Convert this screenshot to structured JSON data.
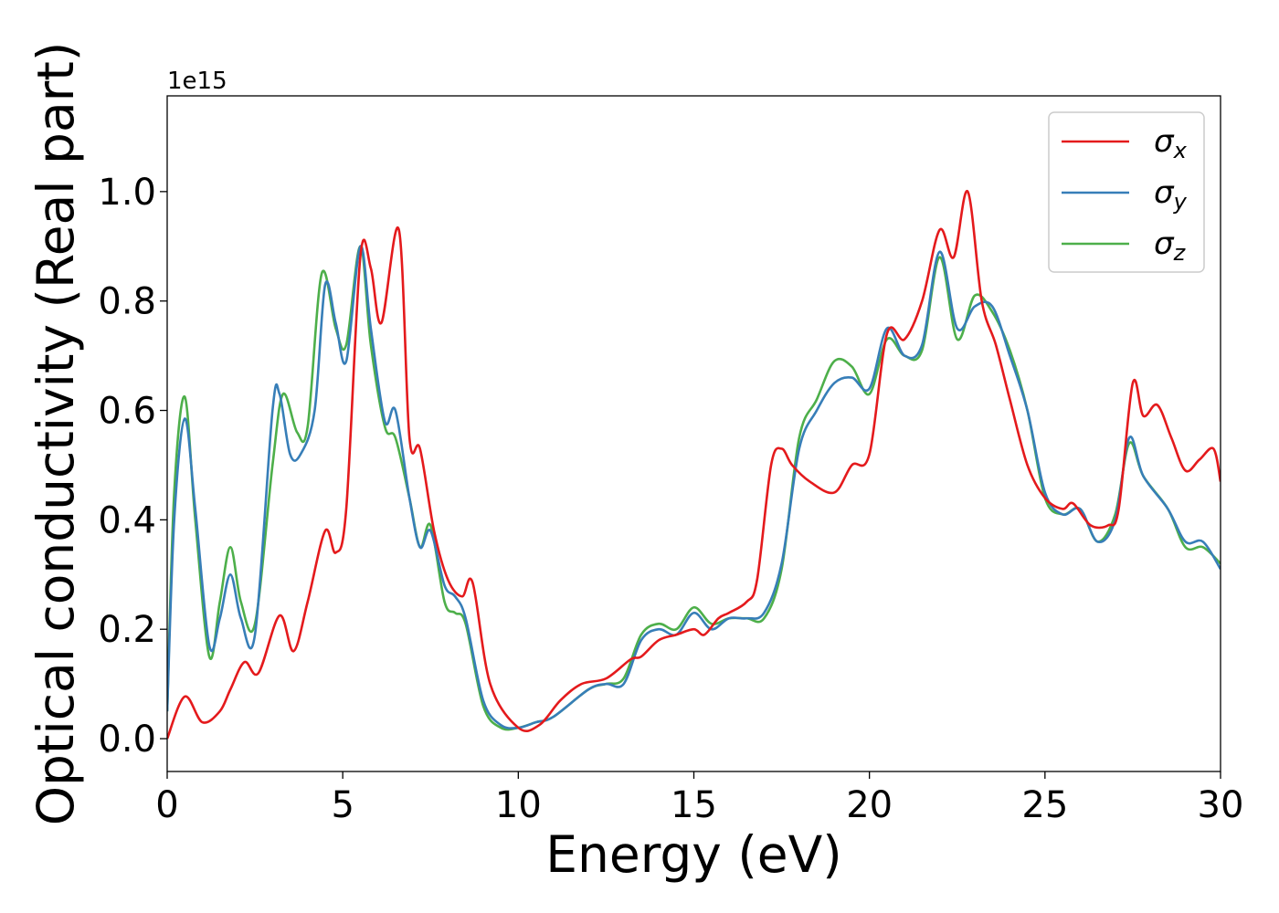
{
  "chart_data": {
    "type": "line",
    "title": "",
    "xlabel": "Energy (eV)",
    "ylabel": "Optical conductivity (Real part)",
    "y_offset_text": "1e15",
    "xlim": [
      0,
      30
    ],
    "ylim": [
      -0.06,
      1.175
    ],
    "xticks": [
      0,
      5,
      10,
      15,
      20,
      25,
      30
    ],
    "xtick_labels": [
      "0",
      "5",
      "10",
      "15",
      "20",
      "25",
      "30"
    ],
    "yticks": [
      0.0,
      0.2,
      0.4,
      0.6,
      0.8,
      1.0
    ],
    "ytick_labels": [
      "0.0",
      "0.2",
      "0.4",
      "0.6",
      "0.8",
      "1.0"
    ],
    "grid": false,
    "legend_position": "upper right",
    "series": [
      {
        "name": "σx",
        "symbol": "σ",
        "subscript": "x",
        "color": "#e41a1c",
        "x": [
          0,
          0.5,
          1.0,
          1.5,
          1.8,
          2.2,
          2.6,
          3.2,
          3.6,
          4.0,
          4.5,
          4.8,
          5.1,
          5.5,
          5.8,
          6.1,
          6.6,
          6.9,
          7.2,
          7.6,
          8.0,
          8.4,
          8.7,
          9.2,
          10.0,
          10.6,
          11.2,
          11.8,
          12.5,
          13.2,
          13.5,
          14.0,
          14.5,
          15.0,
          15.3,
          15.7,
          16.0,
          16.5,
          16.8,
          17.2,
          17.5,
          17.8,
          18.3,
          19.0,
          19.5,
          20.0,
          20.5,
          21.0,
          21.5,
          22.0,
          22.4,
          22.8,
          23.2,
          23.6,
          24.0,
          24.5,
          25.0,
          25.5,
          25.8,
          26.3,
          26.8,
          27.1,
          27.5,
          27.8,
          28.2,
          28.6,
          29.0,
          29.4,
          29.8,
          30.0
        ],
        "y": [
          0.0,
          0.077,
          0.03,
          0.05,
          0.09,
          0.14,
          0.12,
          0.225,
          0.16,
          0.25,
          0.38,
          0.34,
          0.42,
          0.88,
          0.86,
          0.76,
          0.93,
          0.55,
          0.53,
          0.38,
          0.29,
          0.26,
          0.285,
          0.1,
          0.02,
          0.025,
          0.07,
          0.1,
          0.11,
          0.145,
          0.15,
          0.18,
          0.19,
          0.2,
          0.19,
          0.22,
          0.23,
          0.25,
          0.29,
          0.5,
          0.53,
          0.5,
          0.47,
          0.45,
          0.5,
          0.52,
          0.74,
          0.73,
          0.8,
          0.93,
          0.88,
          1.0,
          0.8,
          0.72,
          0.62,
          0.5,
          0.44,
          0.42,
          0.43,
          0.39,
          0.39,
          0.42,
          0.65,
          0.59,
          0.61,
          0.55,
          0.49,
          0.51,
          0.53,
          0.47
        ]
      },
      {
        "name": "σy",
        "symbol": "σ",
        "subscript": "y",
        "color": "#377eb8",
        "x": [
          0,
          0.2,
          0.5,
          0.8,
          1.2,
          1.5,
          1.8,
          2.1,
          2.5,
          3.0,
          3.2,
          3.5,
          3.8,
          4.2,
          4.5,
          4.8,
          5.1,
          5.5,
          5.8,
          6.2,
          6.5,
          6.9,
          7.2,
          7.5,
          7.9,
          8.2,
          8.5,
          9.0,
          9.5,
          10.0,
          10.5,
          11.0,
          12.0,
          12.5,
          13.0,
          13.5,
          14.0,
          14.5,
          15.0,
          15.5,
          16.0,
          16.5,
          17.0,
          17.5,
          18.0,
          18.5,
          19.0,
          19.5,
          20.0,
          20.5,
          21.0,
          21.5,
          22.0,
          22.5,
          23.0,
          23.5,
          24.0,
          24.5,
          25.0,
          25.5,
          26.0,
          26.5,
          27.0,
          27.4,
          27.8,
          28.5,
          29.0,
          29.5,
          30.0
        ],
        "y": [
          0.05,
          0.4,
          0.585,
          0.42,
          0.17,
          0.22,
          0.3,
          0.22,
          0.19,
          0.6,
          0.63,
          0.52,
          0.52,
          0.6,
          0.83,
          0.76,
          0.69,
          0.9,
          0.75,
          0.58,
          0.6,
          0.44,
          0.35,
          0.38,
          0.28,
          0.26,
          0.22,
          0.07,
          0.025,
          0.02,
          0.03,
          0.04,
          0.09,
          0.1,
          0.1,
          0.18,
          0.2,
          0.19,
          0.23,
          0.2,
          0.22,
          0.22,
          0.23,
          0.32,
          0.53,
          0.6,
          0.65,
          0.66,
          0.64,
          0.75,
          0.7,
          0.72,
          0.89,
          0.75,
          0.79,
          0.79,
          0.7,
          0.6,
          0.45,
          0.41,
          0.42,
          0.36,
          0.4,
          0.55,
          0.48,
          0.42,
          0.36,
          0.36,
          0.31
        ]
      },
      {
        "name": "σz",
        "symbol": "σ",
        "subscript": "z",
        "color": "#4daf4a",
        "x": [
          0,
          0.2,
          0.5,
          0.8,
          1.2,
          1.5,
          1.8,
          2.1,
          2.5,
          3.0,
          3.3,
          3.7,
          4.0,
          4.4,
          4.8,
          5.1,
          5.5,
          5.8,
          6.2,
          6.5,
          6.9,
          7.2,
          7.5,
          7.9,
          8.2,
          8.5,
          9.0,
          9.5,
          10.0,
          10.5,
          11.0,
          12.0,
          12.5,
          13.0,
          13.5,
          14.0,
          14.5,
          15.0,
          15.5,
          16.0,
          16.5,
          17.0,
          17.5,
          18.0,
          18.5,
          19.0,
          19.5,
          20.0,
          20.5,
          21.0,
          21.5,
          22.0,
          22.5,
          23.0,
          23.5,
          24.0,
          24.5,
          25.0,
          25.5,
          26.0,
          26.5,
          27.0,
          27.4,
          27.8,
          28.5,
          29.0,
          29.5,
          30.0
        ],
        "y": [
          0.05,
          0.45,
          0.625,
          0.4,
          0.15,
          0.25,
          0.35,
          0.25,
          0.21,
          0.5,
          0.63,
          0.56,
          0.57,
          0.85,
          0.75,
          0.72,
          0.9,
          0.72,
          0.57,
          0.55,
          0.44,
          0.35,
          0.39,
          0.25,
          0.23,
          0.21,
          0.06,
          0.02,
          0.02,
          0.03,
          0.04,
          0.09,
          0.1,
          0.11,
          0.19,
          0.21,
          0.2,
          0.24,
          0.21,
          0.22,
          0.22,
          0.22,
          0.31,
          0.55,
          0.62,
          0.69,
          0.68,
          0.63,
          0.73,
          0.7,
          0.71,
          0.88,
          0.73,
          0.81,
          0.78,
          0.71,
          0.6,
          0.44,
          0.41,
          0.42,
          0.36,
          0.41,
          0.54,
          0.48,
          0.42,
          0.35,
          0.35,
          0.32
        ]
      }
    ]
  }
}
